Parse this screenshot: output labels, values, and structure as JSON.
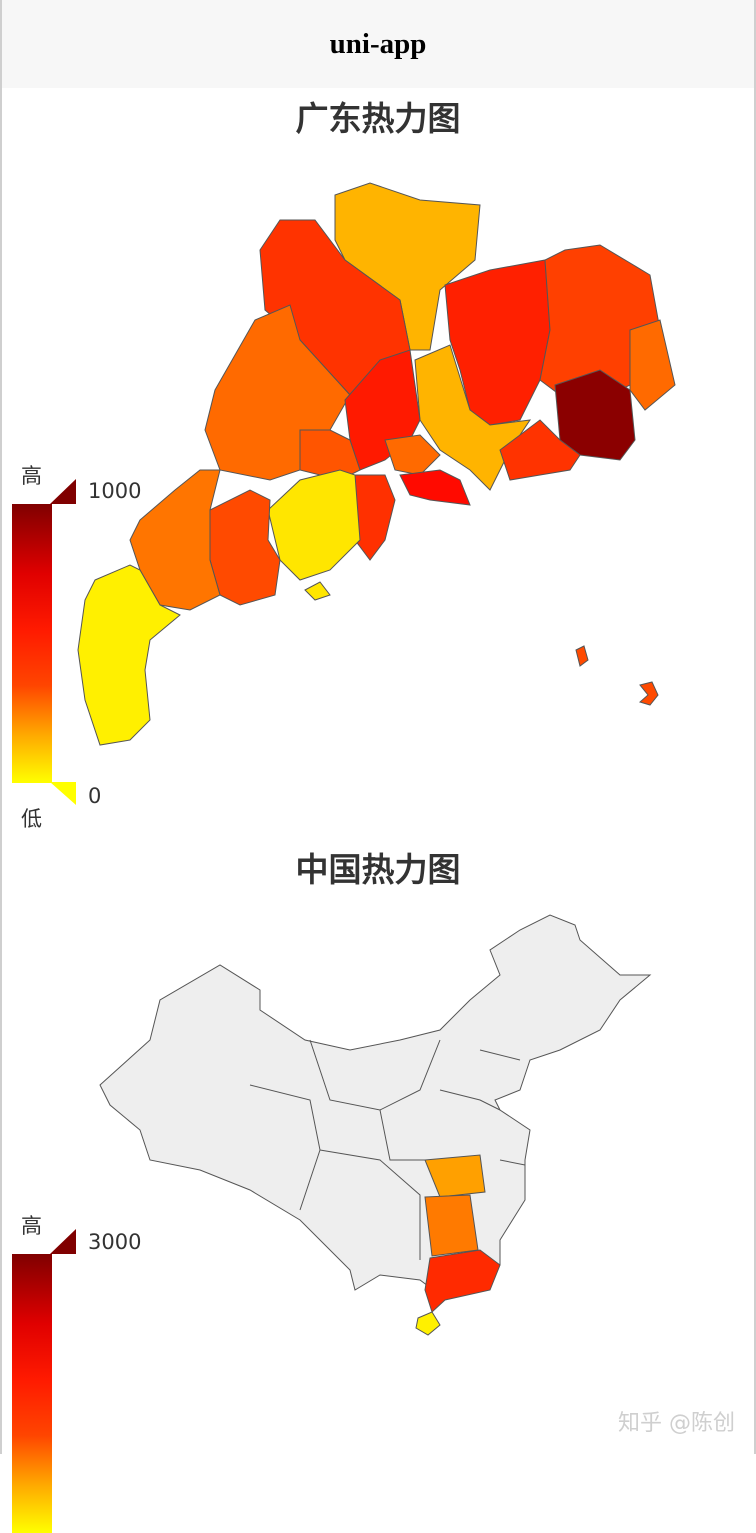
{
  "navbar": {
    "title": "uni-app"
  },
  "guangdong_map": {
    "title": "广东热力图",
    "visual_map": {
      "high_label": "高",
      "low_label": "低",
      "max": 1000,
      "min": 0,
      "max_text": "1000",
      "min_text": "0",
      "colors": [
        "#ffff00",
        "#ffa500",
        "#ff4500",
        "#ff0000",
        "#800000"
      ]
    }
  },
  "china_map": {
    "title": "中国热力图",
    "visual_map": {
      "high_label": "高",
      "max": 3000,
      "max_text": "3000",
      "colors": [
        "#ffff00",
        "#ffa500",
        "#ff4500",
        "#ff0000",
        "#800000"
      ]
    },
    "default_region_color": "#eeeeee"
  },
  "watermark": "知乎 @陈创"
}
